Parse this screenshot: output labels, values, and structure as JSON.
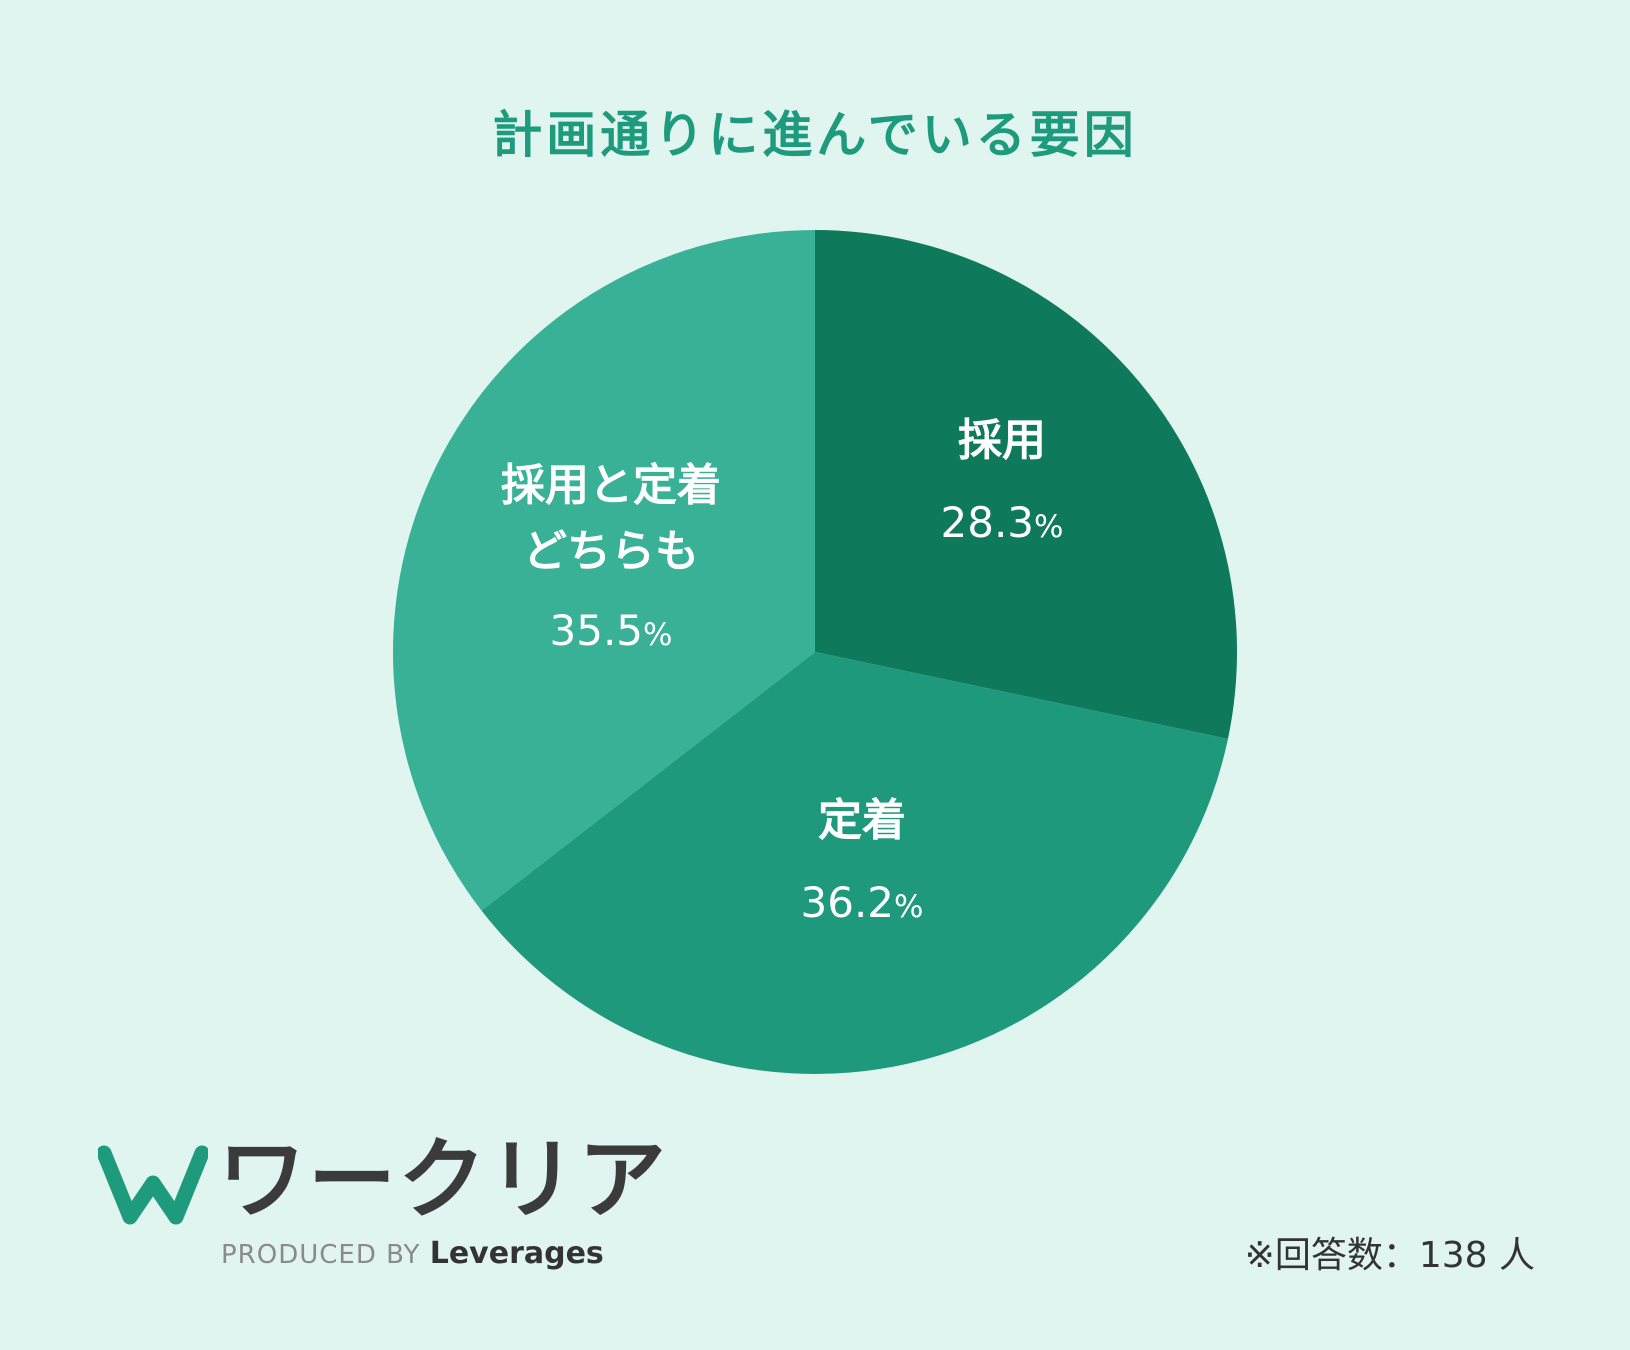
{
  "chart_data": {
    "type": "pie",
    "title": "計画通りに進んでいる要因",
    "slices": [
      {
        "label": "採用",
        "value": 28.3,
        "display": "28.3",
        "color": "#0f795c"
      },
      {
        "label": "定着",
        "value": 36.2,
        "display": "36.2",
        "color": "#1e997c"
      },
      {
        "label": [
          "採用と定着",
          "どちらも"
        ],
        "value": 35.5,
        "display": "35.5",
        "color": "#38b197"
      }
    ],
    "unit": "%"
  },
  "logo": {
    "name": "ワークリア",
    "produced_by": "PRODUCED BY",
    "brand": "Leverages",
    "icon": "w-logo-icon",
    "colors": {
      "primary": "#1e9a7d",
      "text": "#3b3b3b"
    }
  },
  "footer": {
    "note": "※回答数：138 人"
  },
  "theme": {
    "background": "#e0f5f0",
    "title_color": "#1e9a7d"
  }
}
